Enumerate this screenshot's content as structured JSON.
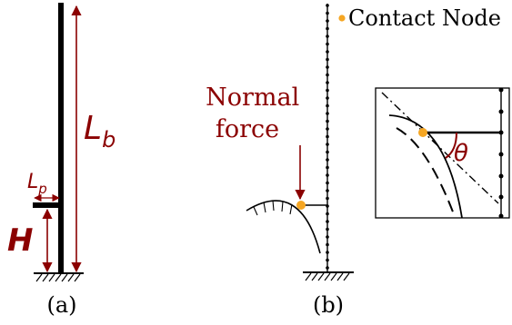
{
  "panels": {
    "a": {
      "caption": "(a)"
    },
    "b": {
      "caption": "(b)"
    }
  },
  "labels": {
    "Lb": {
      "main": "L",
      "sub": "b"
    },
    "Lp": {
      "main": "L",
      "sub": "p"
    },
    "H": "H",
    "normal_force": [
      "Normal",
      "force"
    ],
    "contact_node": "Contact Node",
    "theta": "θ"
  },
  "colors": {
    "black": "#000000",
    "annotation_red": "#8b0000",
    "contact_orange": "#f5a623"
  }
}
